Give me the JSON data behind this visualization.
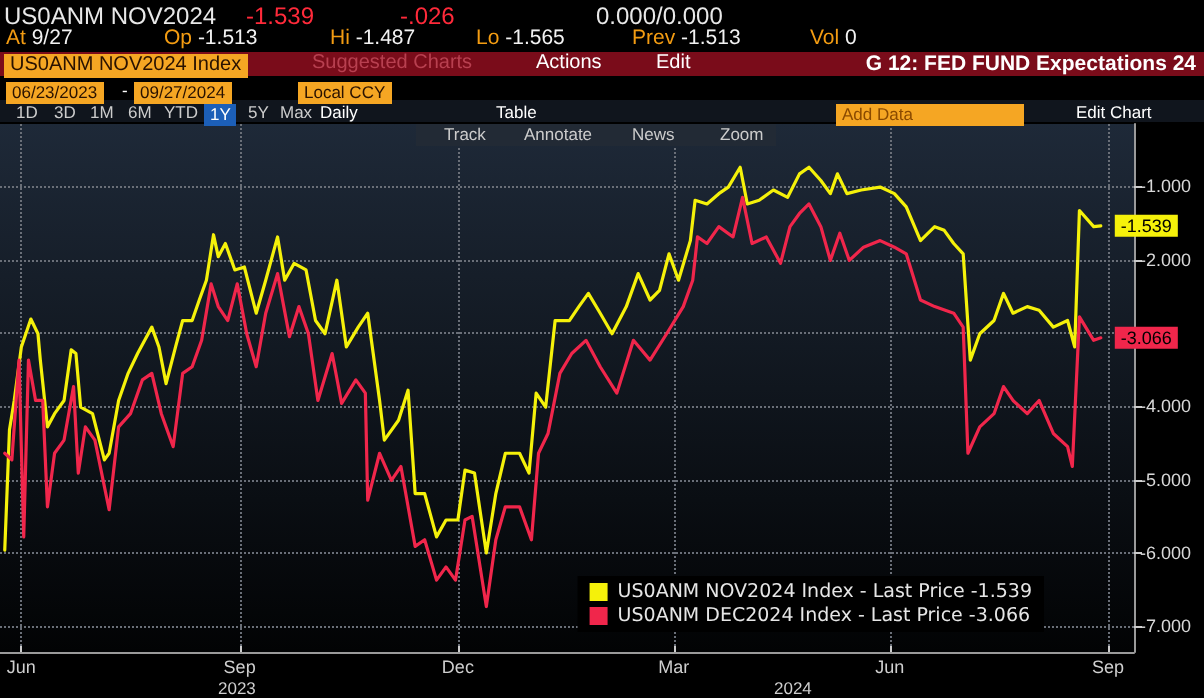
{
  "chart_data": {
    "type": "line",
    "title": "G 12: FED FUND Expectations 24",
    "annotations": [
      "US0ANM NOV2024",
      "-1.539",
      "-.026",
      "0.000/0.000",
      "At 9/27",
      "Op -1.513",
      "Hi -1.487",
      "Lo -1.565",
      "Prev -1.513",
      "Vol 0",
      "US0ANM NOV2024 Index",
      "Suggested Charts",
      "Actions",
      "Edit",
      "06/23/2023",
      "-",
      "09/27/2024",
      "Local CCY",
      "1D",
      "3D",
      "1M",
      "6M",
      "YTD",
      "1Y",
      "5Y",
      "Max",
      "Daily",
      "Table",
      "Add Data",
      "Edit Chart",
      "Track",
      "Annotate",
      "News",
      "Zoom",
      "2023",
      "2024"
    ],
    "xlim": [
      "2023-06-21",
      "2024-10-11"
    ],
    "xticks": [
      {
        "value": "2023-06-30",
        "label": "Jun"
      },
      {
        "value": "2023-09-30",
        "label": "Sep"
      },
      {
        "value": "2023-12-31",
        "label": "Dec"
      },
      {
        "value": "2024-03-31",
        "label": "Mar"
      },
      {
        "value": "2024-06-30",
        "label": "Jun"
      },
      {
        "value": "2024-09-30",
        "label": "Sep"
      }
    ],
    "ylim": [
      -7.35,
      -0.15
    ],
    "yticks": [
      {
        "value": -1,
        "label": "-1.000"
      },
      {
        "value": -2,
        "label": "-2.000"
      },
      {
        "value": -3,
        "label": null
      },
      {
        "value": -4,
        "label": "-4.000"
      },
      {
        "value": -5,
        "label": "-5.000"
      },
      {
        "value": -6,
        "label": "-6.000"
      },
      {
        "value": -7,
        "label": "-7.000"
      }
    ],
    "grid": true,
    "legend": "bottom right",
    "marker": "none",
    "line_style": "solid",
    "series": [
      {
        "name": "US0ANM NOV2024 Index - Last Price -1.539",
        "color": "#f5f10a",
        "x": [
          "2023-06-23",
          "2023-06-25",
          "2023-06-27",
          "2023-06-30",
          "2023-07-04",
          "2023-07-07",
          "2023-07-08",
          "2023-07-11",
          "2023-07-14",
          "2023-07-18",
          "2023-07-21",
          "2023-07-23",
          "2023-07-25",
          "2023-07-30",
          "2023-08-04",
          "2023-08-06",
          "2023-08-10",
          "2023-08-14",
          "2023-08-18",
          "2023-08-21",
          "2023-08-24",
          "2023-08-27",
          "2023-08-30",
          "2023-09-03",
          "2023-09-06",
          "2023-09-10",
          "2023-09-13",
          "2023-09-16",
          "2023-09-19",
          "2023-09-21",
          "2023-09-24",
          "2023-09-28",
          "2023-10-02",
          "2023-10-07",
          "2023-10-11",
          "2023-10-16",
          "2023-10-19",
          "2023-10-23",
          "2023-10-28",
          "2023-11-01",
          "2023-11-05",
          "2023-11-10",
          "2023-11-14",
          "2023-11-19",
          "2023-11-23",
          "2023-11-28",
          "2023-11-30",
          "2023-12-06",
          "2023-12-10",
          "2023-12-13",
          "2023-12-17",
          "2023-12-22",
          "2023-12-26",
          "2023-12-31",
          "2024-01-03",
          "2024-01-07",
          "2024-01-12",
          "2024-01-16",
          "2024-01-20",
          "2024-01-26",
          "2024-01-30",
          "2024-02-02",
          "2024-02-06",
          "2024-02-10",
          "2024-02-16",
          "2024-02-20",
          "2024-02-24",
          "2024-02-29",
          "2024-03-05",
          "2024-03-11",
          "2024-03-16",
          "2024-03-21",
          "2024-03-25",
          "2024-03-29",
          "2024-04-02",
          "2024-04-07",
          "2024-04-09",
          "2024-04-14",
          "2024-04-19",
          "2024-04-23",
          "2024-04-28",
          "2024-05-01",
          "2024-05-06",
          "2024-05-12",
          "2024-05-18",
          "2024-05-23",
          "2024-05-27",
          "2024-06-01",
          "2024-06-05",
          "2024-06-08",
          "2024-06-12",
          "2024-06-18",
          "2024-06-26",
          "2024-07-02",
          "2024-07-07",
          "2024-07-13",
          "2024-07-19",
          "2024-07-23",
          "2024-07-27",
          "2024-07-31",
          "2024-08-03",
          "2024-08-07",
          "2024-08-13",
          "2024-08-17",
          "2024-08-21",
          "2024-08-27",
          "2024-09-01",
          "2024-09-07",
          "2024-09-13",
          "2024-09-16",
          "2024-09-18",
          "2024-09-24",
          "2024-09-27"
        ],
        "values": [
          -5.96,
          -4.32,
          -3.92,
          -3.19,
          -2.81,
          -3.01,
          -3.37,
          -4.28,
          -4.1,
          -3.92,
          -3.23,
          -3.28,
          -4.01,
          -4.1,
          -4.73,
          -4.64,
          -3.92,
          -3.55,
          -3.28,
          -3.1,
          -2.92,
          -3.19,
          -3.69,
          -3.19,
          -2.83,
          -2.83,
          -2.55,
          -2.28,
          -1.66,
          -1.96,
          -1.78,
          -2.14,
          -2.1,
          -2.73,
          -2.28,
          -1.69,
          -2.28,
          -2.05,
          -2.14,
          -2.83,
          -3.01,
          -2.28,
          -3.19,
          -2.92,
          -2.73,
          -3.92,
          -4.46,
          -4.19,
          -3.78,
          -5.19,
          -5.19,
          -5.78,
          -5.55,
          -5.55,
          -4.87,
          -4.91,
          -6.0,
          -5.19,
          -4.64,
          -4.64,
          -4.91,
          -3.82,
          -4.01,
          -2.83,
          -2.83,
          -2.64,
          -2.46,
          -2.73,
          -3.01,
          -2.64,
          -2.19,
          -2.55,
          -2.42,
          -1.92,
          -2.28,
          -1.74,
          -1.19,
          -1.24,
          -1.1,
          -1.01,
          -0.74,
          -1.24,
          -1.19,
          -1.05,
          -1.15,
          -0.83,
          -0.74,
          -0.92,
          -1.1,
          -0.83,
          -1.1,
          -1.05,
          -1.01,
          -1.1,
          -1.28,
          -1.74,
          -1.55,
          -1.6,
          -1.78,
          -1.92,
          -3.37,
          -3.01,
          -2.83,
          -2.46,
          -2.73,
          -2.64,
          -2.69,
          -2.92,
          -2.83,
          -3.19,
          -1.33,
          -1.55,
          -1.539
        ],
        "value_labels": [
          null,
          null,
          null,
          null,
          null,
          null,
          null,
          null,
          null,
          null,
          null,
          null,
          null,
          null,
          null,
          null,
          null,
          null,
          null,
          null,
          null,
          null,
          null,
          null,
          null,
          null,
          null,
          null,
          null,
          null,
          null,
          null,
          null,
          null,
          null,
          null,
          null,
          null,
          null,
          null,
          null,
          null,
          null,
          null,
          null,
          null,
          null,
          null,
          null,
          null,
          null,
          null,
          null,
          null,
          null,
          null,
          null,
          null,
          null,
          null,
          null,
          null,
          null,
          null,
          null,
          null,
          null,
          null,
          null,
          null,
          null,
          null,
          null,
          null,
          null,
          null,
          null,
          null,
          null,
          null,
          null,
          null,
          null,
          null,
          null,
          null,
          null,
          null,
          null,
          null,
          null,
          null,
          null,
          null,
          null,
          null,
          null,
          null,
          null,
          null,
          null,
          null,
          null,
          null,
          null,
          null,
          null,
          null,
          null,
          null,
          null,
          null,
          "-1.539"
        ]
      },
      {
        "name": "US0ANM DEC2024 Index - Last Price -3.066",
        "color": "#f0264b",
        "x": [
          "2023-06-23",
          "2023-06-26",
          "2023-06-29",
          "2023-07-01",
          "2023-07-03",
          "2023-07-06",
          "2023-07-09",
          "2023-07-11",
          "2023-07-14",
          "2023-07-18",
          "2023-07-22",
          "2023-07-24",
          "2023-07-27",
          "2023-07-31",
          "2023-08-06",
          "2023-08-10",
          "2023-08-15",
          "2023-08-20",
          "2023-08-24",
          "2023-08-28",
          "2023-09-02",
          "2023-09-06",
          "2023-09-10",
          "2023-09-14",
          "2023-09-18",
          "2023-09-21",
          "2023-09-25",
          "2023-09-29",
          "2023-10-03",
          "2023-10-07",
          "2023-10-11",
          "2023-10-16",
          "2023-10-21",
          "2023-10-25",
          "2023-10-29",
          "2023-11-02",
          "2023-11-08",
          "2023-11-12",
          "2023-11-18",
          "2023-11-22",
          "2023-11-23",
          "2023-11-28",
          "2023-12-03",
          "2023-12-07",
          "2023-12-13",
          "2023-12-17",
          "2023-12-22",
          "2023-12-26",
          "2023-12-30",
          "2024-01-03",
          "2024-01-06",
          "2024-01-12",
          "2024-01-16",
          "2024-01-20",
          "2024-01-26",
          "2024-01-31",
          "2024-02-03",
          "2024-02-07",
          "2024-02-12",
          "2024-02-17",
          "2024-02-23",
          "2024-02-29",
          "2024-03-07",
          "2024-03-14",
          "2024-03-21",
          "2024-03-28",
          "2024-04-04",
          "2024-04-08",
          "2024-04-10",
          "2024-04-14",
          "2024-04-19",
          "2024-04-25",
          "2024-04-29",
          "2024-05-03",
          "2024-05-09",
          "2024-05-15",
          "2024-05-19",
          "2024-05-23",
          "2024-05-27",
          "2024-06-01",
          "2024-06-05",
          "2024-06-09",
          "2024-06-13",
          "2024-06-19",
          "2024-06-26",
          "2024-07-02",
          "2024-07-07",
          "2024-07-13",
          "2024-07-19",
          "2024-07-27",
          "2024-07-31",
          "2024-08-02",
          "2024-08-07",
          "2024-08-13",
          "2024-08-17",
          "2024-08-21",
          "2024-08-27",
          "2024-09-01",
          "2024-09-07",
          "2024-09-13",
          "2024-09-15",
          "2024-09-18",
          "2024-09-24",
          "2024-09-27"
        ],
        "values": [
          -4.64,
          -4.73,
          -3.37,
          -5.78,
          -3.37,
          -3.92,
          -3.92,
          -5.37,
          -4.64,
          -4.46,
          -3.73,
          -4.91,
          -4.28,
          -4.46,
          -5.41,
          -4.28,
          -4.1,
          -3.64,
          -3.55,
          -4.1,
          -4.55,
          -3.55,
          -3.46,
          -3.1,
          -2.33,
          -2.64,
          -2.83,
          -2.33,
          -3.01,
          -3.46,
          -2.73,
          -2.19,
          -3.05,
          -2.64,
          -3.01,
          -3.92,
          -3.28,
          -3.96,
          -3.64,
          -3.82,
          -5.28,
          -4.64,
          -5.01,
          -4.82,
          -5.91,
          -5.82,
          -6.37,
          -6.19,
          -6.37,
          -5.55,
          -5.5,
          -6.73,
          -5.82,
          -5.37,
          -5.37,
          -5.82,
          -4.64,
          -4.37,
          -3.55,
          -3.28,
          -3.1,
          -3.46,
          -3.82,
          -3.1,
          -3.37,
          -3.01,
          -2.64,
          -2.28,
          -1.69,
          -1.78,
          -1.55,
          -1.69,
          -1.15,
          -1.78,
          -1.69,
          -2.05,
          -1.55,
          -1.37,
          -1.24,
          -1.55,
          -2.01,
          -1.64,
          -2.01,
          -1.83,
          -1.74,
          -1.83,
          -1.92,
          -2.55,
          -2.64,
          -2.73,
          -2.92,
          -4.64,
          -4.28,
          -4.1,
          -3.73,
          -3.92,
          -4.1,
          -3.92,
          -4.37,
          -4.55,
          -4.82,
          -2.78,
          -3.1,
          -3.066
        ],
        "value_labels": [
          null,
          null,
          null,
          null,
          null,
          null,
          null,
          null,
          null,
          null,
          null,
          null,
          null,
          null,
          null,
          null,
          null,
          null,
          null,
          null,
          null,
          null,
          null,
          null,
          null,
          null,
          null,
          null,
          null,
          null,
          null,
          null,
          null,
          null,
          null,
          null,
          null,
          null,
          null,
          null,
          null,
          null,
          null,
          null,
          null,
          null,
          null,
          null,
          null,
          null,
          null,
          null,
          null,
          null,
          null,
          null,
          null,
          null,
          null,
          null,
          null,
          null,
          null,
          null,
          null,
          null,
          null,
          null,
          null,
          null,
          null,
          null,
          null,
          null,
          null,
          null,
          null,
          null,
          null,
          null,
          null,
          null,
          null,
          null,
          null,
          null,
          null,
          null,
          null,
          null,
          null,
          null,
          null,
          null,
          null,
          null,
          null,
          null,
          null,
          null,
          null,
          null,
          null,
          "-3.066"
        ]
      }
    ]
  }
}
